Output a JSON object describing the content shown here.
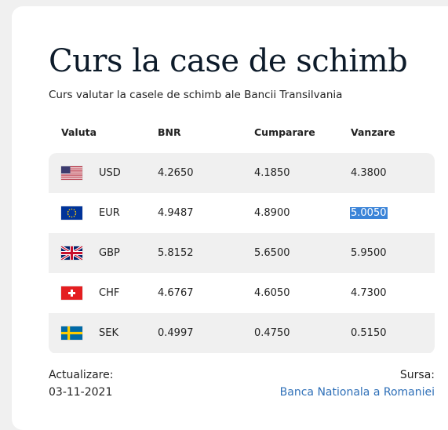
{
  "title": "Curs la case de schimb",
  "subtitle": "Curs valutar la casele de schimb ale Bancii Transilvania",
  "columns": [
    "Valuta",
    "BNR",
    "Cumparare",
    "Vanzare"
  ],
  "rows": [
    {
      "currency": "USD",
      "flag_icon": "us-flag-icon",
      "bnr": "4.2650",
      "buy": "4.1850",
      "sell": "4.3800"
    },
    {
      "currency": "EUR",
      "flag_icon": "eu-flag-icon",
      "bnr": "4.9487",
      "buy": "4.8900",
      "sell": "5.0050"
    },
    {
      "currency": "GBP",
      "flag_icon": "uk-flag-icon",
      "bnr": "5.8152",
      "buy": "5.6500",
      "sell": "5.9500"
    },
    {
      "currency": "CHF",
      "flag_icon": "swiss-flag-icon",
      "bnr": "4.6767",
      "buy": "4.6050",
      "sell": "4.7300"
    },
    {
      "currency": "SEK",
      "flag_icon": "sweden-flag-icon",
      "bnr": "0.4997",
      "buy": "0.4750",
      "sell": "0.5150"
    }
  ],
  "footer": {
    "updated_label": "Actualizare:",
    "updated_date": "03-11-2021",
    "source_label": "Sursa:",
    "source_link": "Banca Nationala a Romaniei"
  },
  "colors": {
    "title": "#0d1b2a",
    "row_shade": "#f0f0f0",
    "selection": "#3b84d8",
    "link": "#2f70b8"
  }
}
